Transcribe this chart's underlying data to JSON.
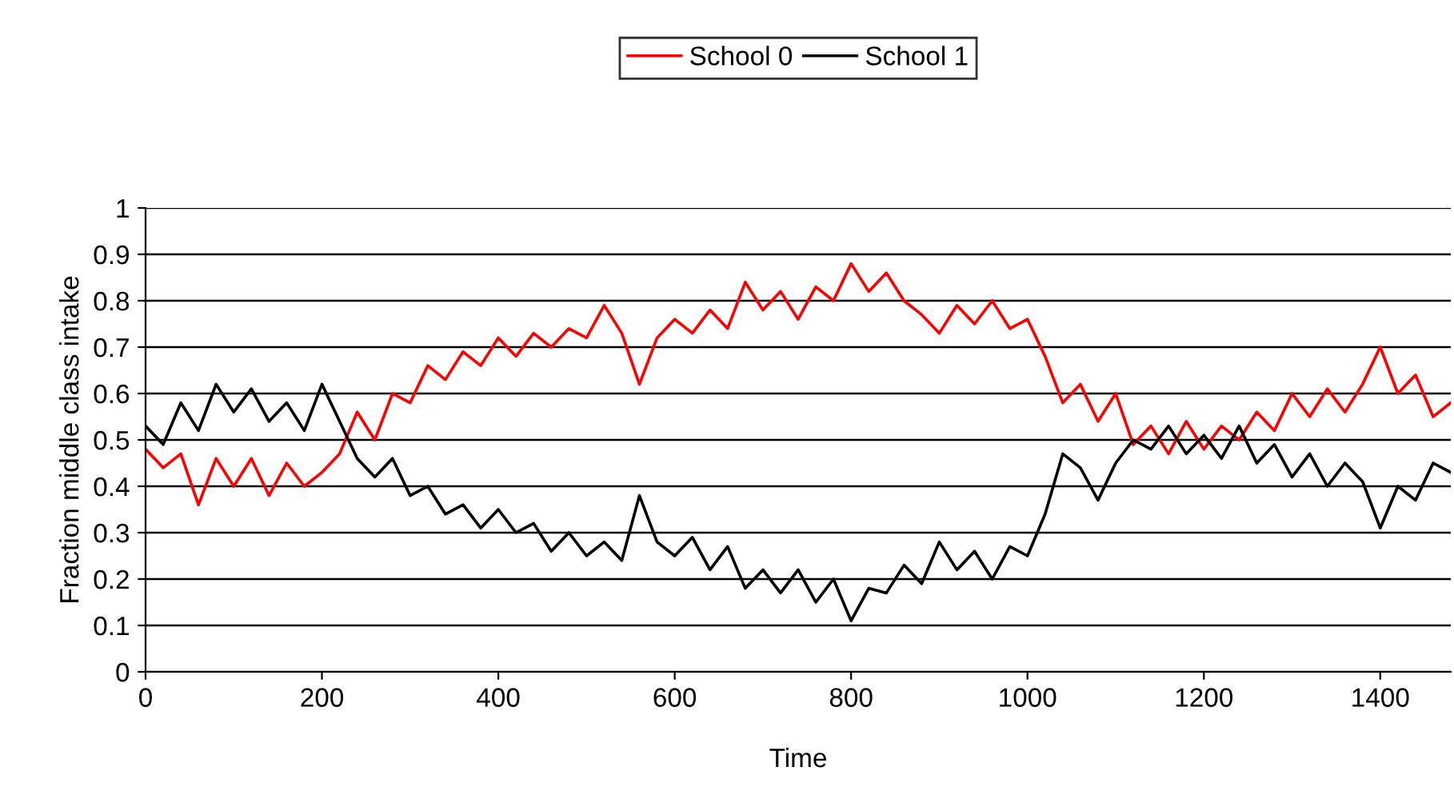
{
  "chart_data": {
    "type": "line",
    "xlabel": "Time",
    "ylabel": "Fraction middle class intake",
    "x": [
      0,
      20,
      40,
      60,
      80,
      100,
      120,
      140,
      160,
      180,
      200,
      220,
      240,
      260,
      280,
      300,
      320,
      340,
      360,
      380,
      400,
      420,
      440,
      460,
      480,
      500,
      520,
      540,
      560,
      580,
      600,
      620,
      640,
      660,
      680,
      700,
      720,
      740,
      760,
      780,
      800,
      820,
      840,
      860,
      880,
      900,
      920,
      940,
      960,
      980,
      1000,
      1020,
      1040,
      1060,
      1080,
      1100,
      1120,
      1140,
      1160,
      1180,
      1200,
      1220,
      1240,
      1260,
      1280,
      1300,
      1320,
      1340,
      1360,
      1380,
      1400,
      1420,
      1440,
      1460,
      1480
    ],
    "series": [
      {
        "name": "School 0",
        "color": "#ff0000",
        "values": [
          0.48,
          0.44,
          0.47,
          0.36,
          0.46,
          0.4,
          0.46,
          0.38,
          0.45,
          0.4,
          0.43,
          0.47,
          0.56,
          0.5,
          0.6,
          0.58,
          0.66,
          0.63,
          0.69,
          0.66,
          0.72,
          0.68,
          0.73,
          0.7,
          0.74,
          0.72,
          0.79,
          0.73,
          0.62,
          0.72,
          0.76,
          0.73,
          0.78,
          0.74,
          0.84,
          0.78,
          0.82,
          0.76,
          0.83,
          0.8,
          0.88,
          0.82,
          0.86,
          0.8,
          0.77,
          0.73,
          0.79,
          0.75,
          0.8,
          0.74,
          0.76,
          0.68,
          0.58,
          0.62,
          0.54,
          0.6,
          0.49,
          0.53,
          0.47,
          0.54,
          0.48,
          0.53,
          0.5,
          0.56,
          0.52,
          0.6,
          0.55,
          0.61,
          0.56,
          0.62,
          0.7,
          0.6,
          0.64,
          0.55,
          0.58
        ]
      },
      {
        "name": "School 1",
        "color": "#000000",
        "values": [
          0.53,
          0.49,
          0.58,
          0.52,
          0.62,
          0.56,
          0.61,
          0.54,
          0.58,
          0.52,
          0.62,
          0.54,
          0.46,
          0.42,
          0.46,
          0.38,
          0.4,
          0.34,
          0.36,
          0.31,
          0.35,
          0.3,
          0.32,
          0.26,
          0.3,
          0.25,
          0.28,
          0.24,
          0.38,
          0.28,
          0.25,
          0.29,
          0.22,
          0.27,
          0.18,
          0.22,
          0.17,
          0.22,
          0.15,
          0.2,
          0.11,
          0.18,
          0.17,
          0.23,
          0.19,
          0.28,
          0.22,
          0.26,
          0.2,
          0.27,
          0.25,
          0.34,
          0.47,
          0.44,
          0.37,
          0.45,
          0.5,
          0.48,
          0.53,
          0.47,
          0.51,
          0.46,
          0.53,
          0.45,
          0.49,
          0.42,
          0.47,
          0.4,
          0.45,
          0.41,
          0.31,
          0.4,
          0.37,
          0.45,
          0.43
        ]
      }
    ],
    "xlim": [
      0,
      1480
    ],
    "xticks": [
      0,
      200,
      400,
      600,
      800,
      1000,
      1200,
      1400
    ],
    "ylim": [
      0,
      1
    ],
    "yticks": [
      0,
      0.1,
      0.2,
      0.3,
      0.4,
      0.5,
      0.6,
      0.7,
      0.8,
      0.9,
      1
    ],
    "grid": "y",
    "legend": "top",
    "line_style": "solid"
  }
}
